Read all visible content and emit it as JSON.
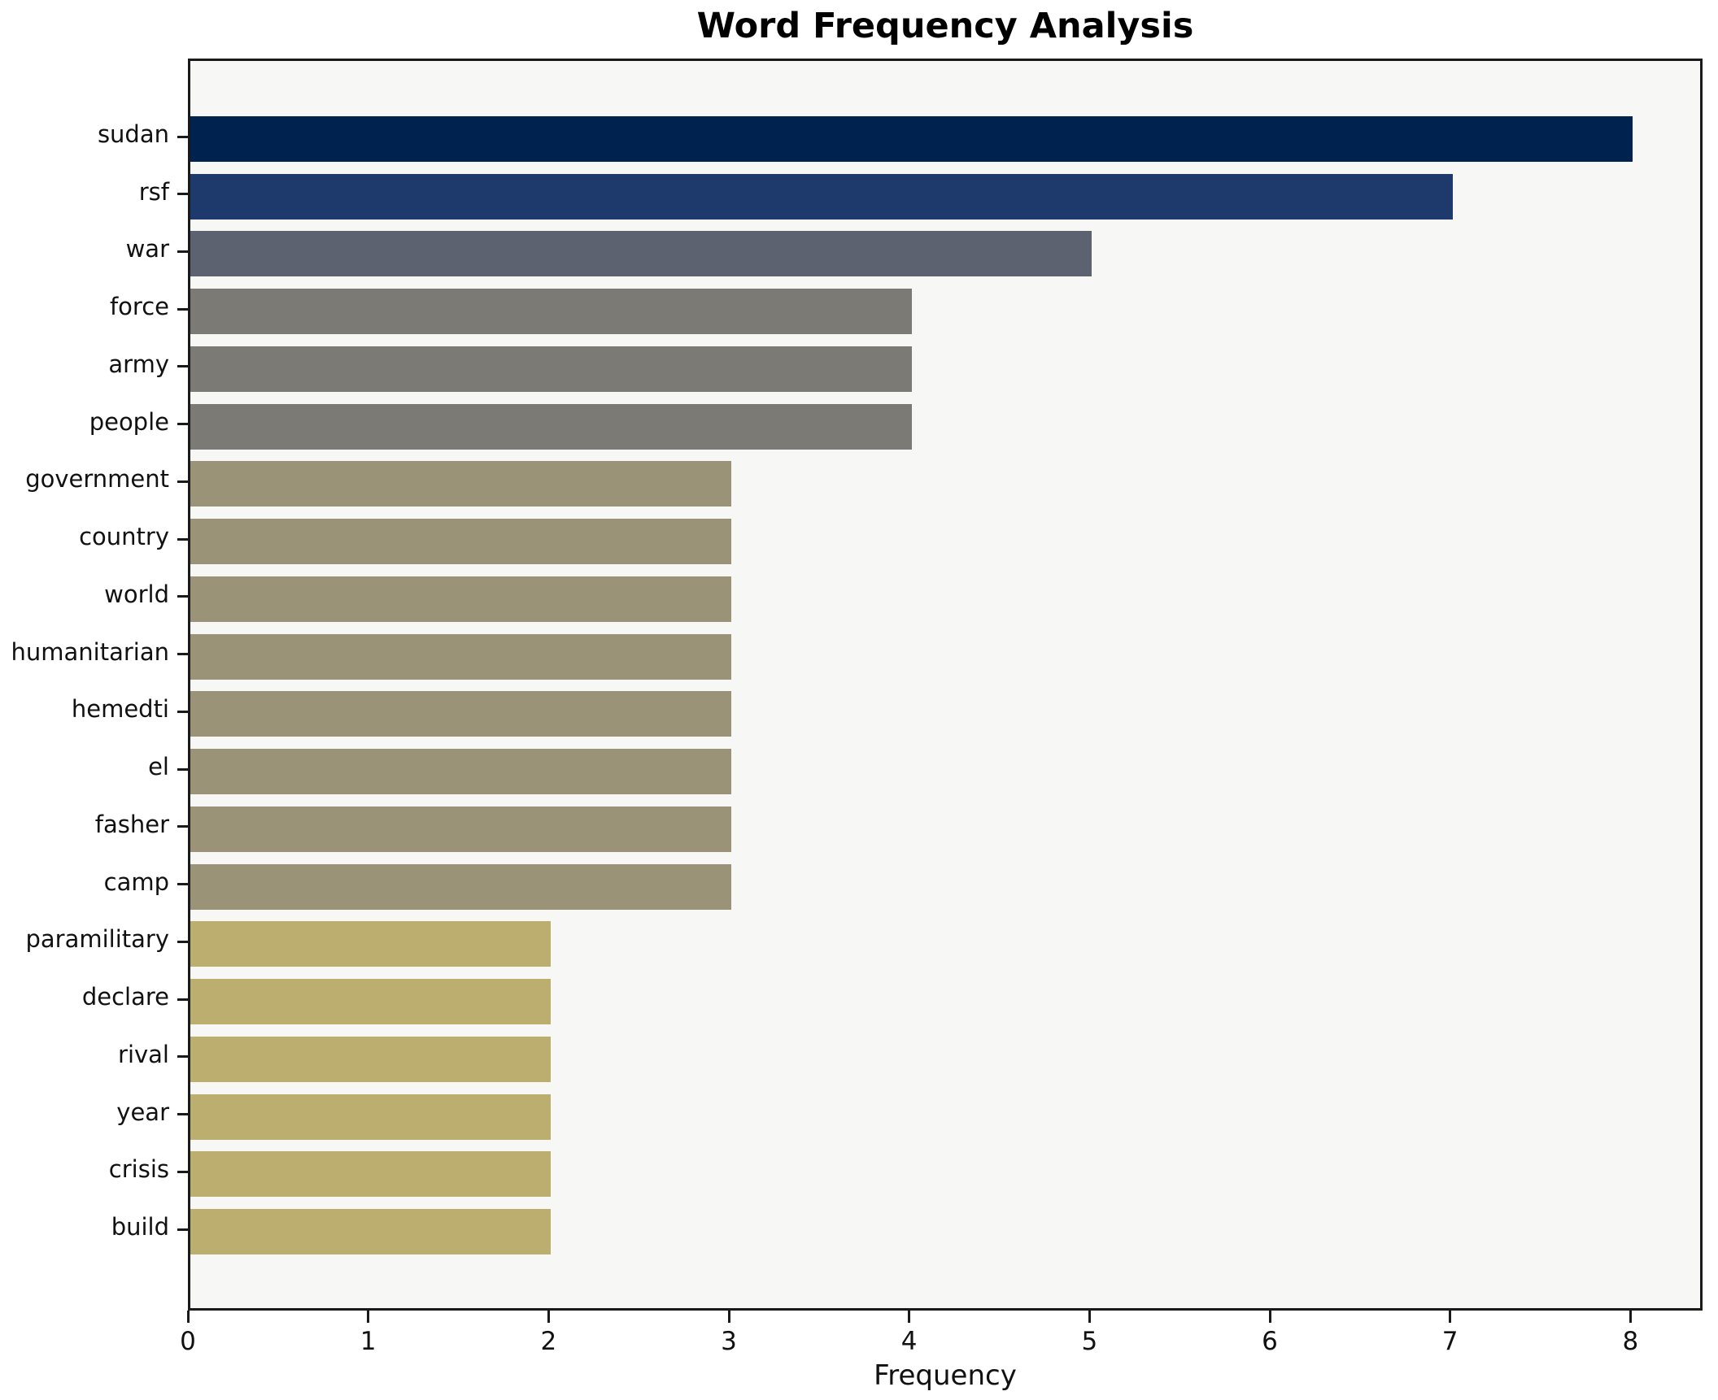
{
  "title": "Word Frequency Analysis",
  "chart_data": {
    "type": "bar",
    "orientation": "horizontal",
    "title": "Word Frequency Analysis",
    "xlabel": "Frequency",
    "ylabel": "",
    "categories": [
      "sudan",
      "rsf",
      "war",
      "force",
      "army",
      "people",
      "government",
      "country",
      "world",
      "humanitarian",
      "hemedti",
      "el",
      "fasher",
      "camp",
      "paramilitary",
      "declare",
      "rival",
      "year",
      "crisis",
      "build"
    ],
    "values": [
      8,
      7,
      5,
      4,
      4,
      4,
      3,
      3,
      3,
      3,
      3,
      3,
      3,
      3,
      2,
      2,
      2,
      2,
      2,
      2
    ],
    "bar_colors": [
      "#00224e",
      "#1e3a6d",
      "#5d6271",
      "#7b7a74",
      "#7b7a74",
      "#7b7a74",
      "#9a9377",
      "#9a9377",
      "#9a9377",
      "#9a9377",
      "#9a9377",
      "#9a9377",
      "#9a9377",
      "#9a9377",
      "#bcae6e",
      "#bcae6e",
      "#bcae6e",
      "#bcae6e",
      "#bcae6e",
      "#bcae6e"
    ],
    "x_ticks": [
      "0",
      "1",
      "2",
      "3",
      "4",
      "5",
      "6",
      "7",
      "8"
    ],
    "xlim": [
      0,
      8.4
    ],
    "grid": false,
    "legend": null,
    "plot_bg": "#f7f7f5",
    "spine_color": "#1a1a1a"
  }
}
